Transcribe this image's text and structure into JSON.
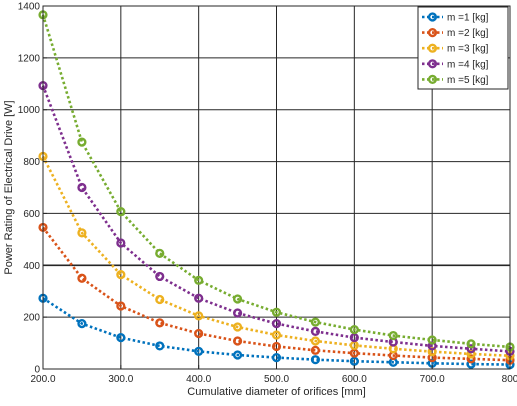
{
  "chart_data": {
    "type": "line",
    "title": "",
    "xlabel": "Cumulative diameter of orifices [mm]",
    "ylabel": "Power Rating of Electrical Drive [W]",
    "xlim": [
      200,
      800
    ],
    "ylim": [
      0,
      1400
    ],
    "x_ticks": [
      200,
      300,
      400,
      500,
      600,
      700,
      800
    ],
    "x_tick_labels": [
      "200.0",
      "300.0",
      "400.0",
      "500.0",
      "600.0",
      "700.0",
      "800"
    ],
    "y_ticks": [
      0,
      200,
      400,
      600,
      800,
      1000,
      1200,
      1400
    ],
    "y_tick_labels": [
      "0",
      "200",
      "400",
      "600",
      "800",
      "1000",
      "1200",
      "1400"
    ],
    "grid": true,
    "highlight_y": 400,
    "legend_position": "top-right",
    "x": [
      200,
      250,
      300,
      350,
      400,
      450,
      500,
      550,
      600,
      650,
      700,
      750,
      800
    ],
    "series": [
      {
        "name": "m =1 [kg]",
        "color": "#0072BD",
        "values": [
          273,
          175,
          121,
          89,
          68,
          54,
          44,
          36,
          30,
          26,
          22,
          19,
          17
        ]
      },
      {
        "name": "m =2 [kg]",
        "color": "#D95319",
        "values": [
          546,
          350,
          243,
          178,
          137,
          108,
          87,
          72,
          61,
          52,
          44,
          39,
          34
        ]
      },
      {
        "name": "m =3 [kg]",
        "color": "#EDB120",
        "values": [
          820,
          525,
          364,
          268,
          205,
          162,
          131,
          108,
          91,
          78,
          67,
          58,
          51
        ]
      },
      {
        "name": "m =4 [kg]",
        "color": "#7E2F8E",
        "values": [
          1093,
          700,
          486,
          357,
          273,
          216,
          175,
          145,
          121,
          104,
          89,
          78,
          68
        ]
      },
      {
        "name": "m =5 [kg]",
        "color": "#77AC30",
        "values": [
          1366,
          875,
          607,
          446,
          342,
          270,
          219,
          181,
          152,
          129,
          112,
          97,
          85
        ]
      }
    ]
  }
}
